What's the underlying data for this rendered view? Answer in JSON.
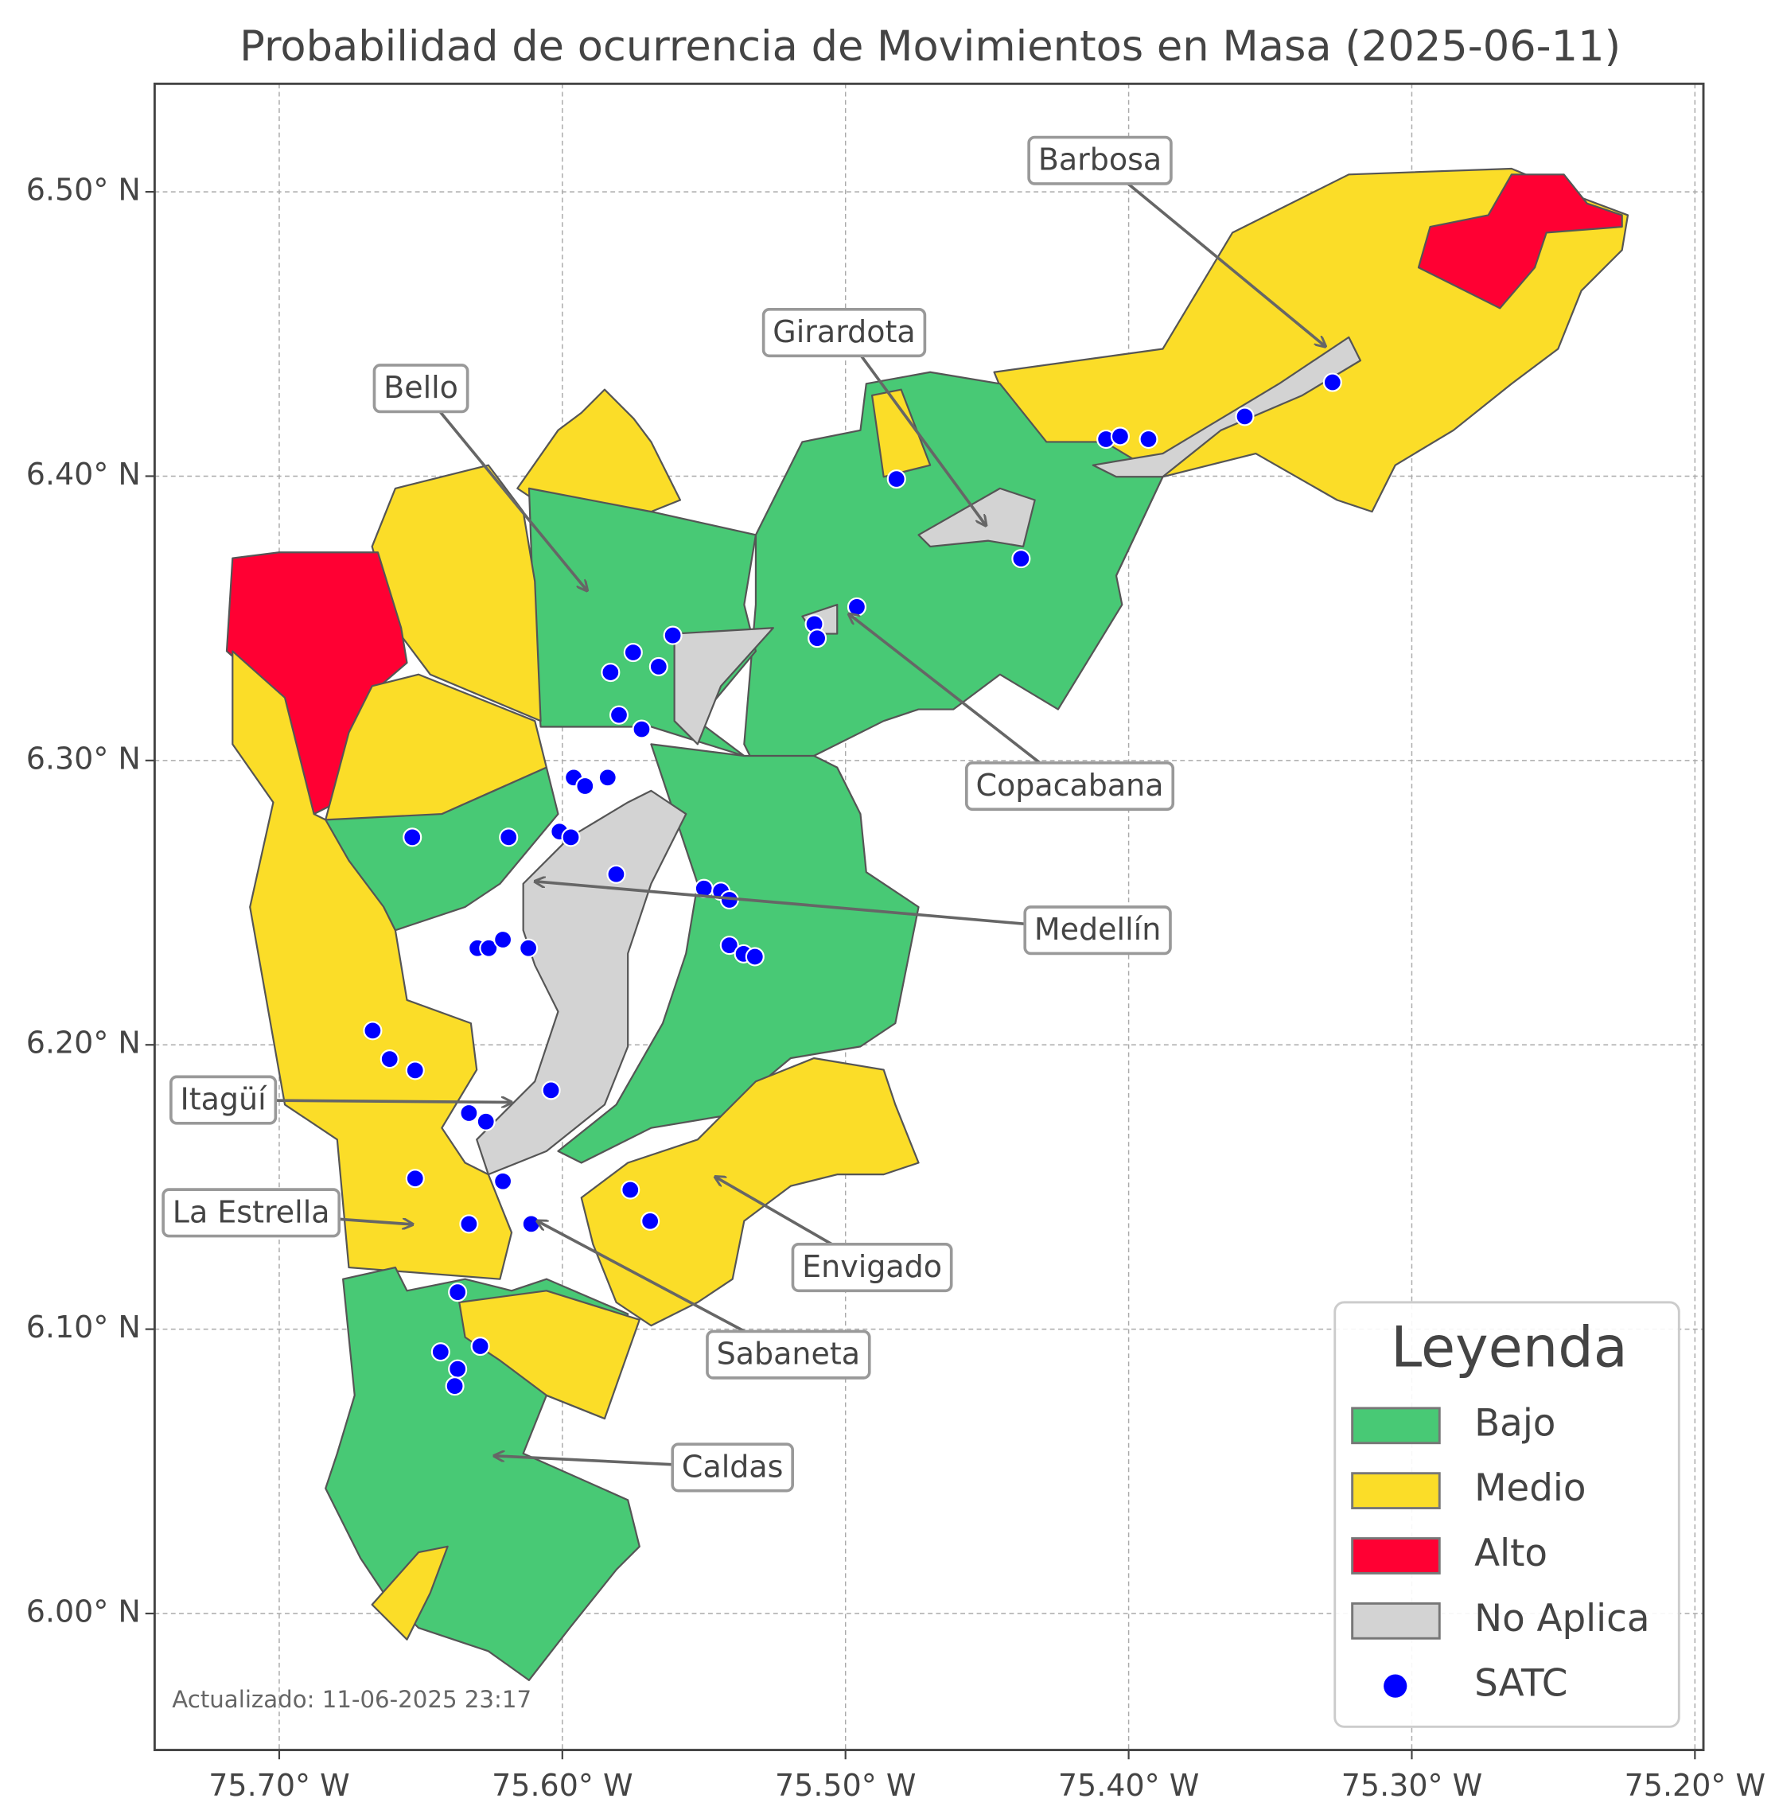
{
  "chart_data": {
    "type": "map",
    "title": "Probabilidad de ocurrencia de Movimientos en Masa (2025-06-11)",
    "xlim": [
      -75.744,
      -75.197
    ],
    "ylim": [
      5.952,
      6.538
    ],
    "xticks": [
      {
        "value": -75.7,
        "label": "75.70° W"
      },
      {
        "value": -75.6,
        "label": "75.60° W"
      },
      {
        "value": -75.5,
        "label": "75.50° W"
      },
      {
        "value": -75.4,
        "label": "75.40° W"
      },
      {
        "value": -75.3,
        "label": "75.30° W"
      },
      {
        "value": -75.2,
        "label": "75.20° W"
      }
    ],
    "yticks": [
      {
        "value": 6.0,
        "label": "6.00° N"
      },
      {
        "value": 6.1,
        "label": "6.10° N"
      },
      {
        "value": 6.2,
        "label": "6.20° N"
      },
      {
        "value": 6.3,
        "label": "6.30° N"
      },
      {
        "value": 6.4,
        "label": "6.40° N"
      },
      {
        "value": 6.5,
        "label": "6.50° N"
      }
    ],
    "grid": true,
    "series": [
      {
        "name": "SATC",
        "color": "#0000ff",
        "x": [
          -75.482,
          -75.408,
          -75.403,
          -75.393,
          -75.359,
          -75.328,
          -75.438,
          -75.496,
          -75.511,
          -75.51,
          -75.561,
          -75.575,
          -75.566,
          -75.583,
          -75.58,
          -75.572,
          -75.596,
          -75.592,
          -75.584,
          -75.619,
          -75.601,
          -75.597,
          -75.653,
          -75.581,
          -75.55,
          -75.544,
          -75.541,
          -75.541,
          -75.536,
          -75.532,
          -75.63,
          -75.626,
          -75.621,
          -75.612,
          -75.667,
          -75.661,
          -75.652,
          -75.604,
          -75.633,
          -75.627,
          -75.652,
          -75.621,
          -75.576,
          -75.569,
          -75.633,
          -75.611,
          -75.637,
          -75.643,
          -75.629,
          -75.637,
          -75.638
        ],
        "y": [
          6.399,
          6.413,
          6.414,
          6.413,
          6.421,
          6.433,
          6.371,
          6.354,
          6.348,
          6.343,
          6.344,
          6.338,
          6.333,
          6.331,
          6.316,
          6.311,
          6.294,
          6.291,
          6.294,
          6.273,
          6.275,
          6.273,
          6.273,
          6.26,
          6.255,
          6.254,
          6.251,
          6.235,
          6.232,
          6.231,
          6.234,
          6.234,
          6.237,
          6.234,
          6.205,
          6.195,
          6.191,
          6.184,
          6.176,
          6.173,
          6.153,
          6.152,
          6.149,
          6.138,
          6.137,
          6.137,
          6.113,
          6.092,
          6.094,
          6.086,
          6.08
        ]
      }
    ],
    "legend": {
      "title": "Leyenda",
      "position": "lower right",
      "entries": [
        {
          "name": "Bajo",
          "color": "#48c975"
        },
        {
          "name": "Medio",
          "color": "#fbdd28"
        },
        {
          "name": "Alto",
          "color": "#ff0033"
        },
        {
          "name": "No Aplica",
          "color": "#d3d3d3"
        }
      ]
    },
    "annotations": [
      "Barbosa",
      "Girardota",
      "Bello",
      "Copacabana",
      "Medellín",
      "Itagüí",
      "La Estrella",
      "Envigado",
      "Sabaneta",
      "Caldas"
    ],
    "footnote": "Actualizado: 11-06-2025 23:17"
  }
}
